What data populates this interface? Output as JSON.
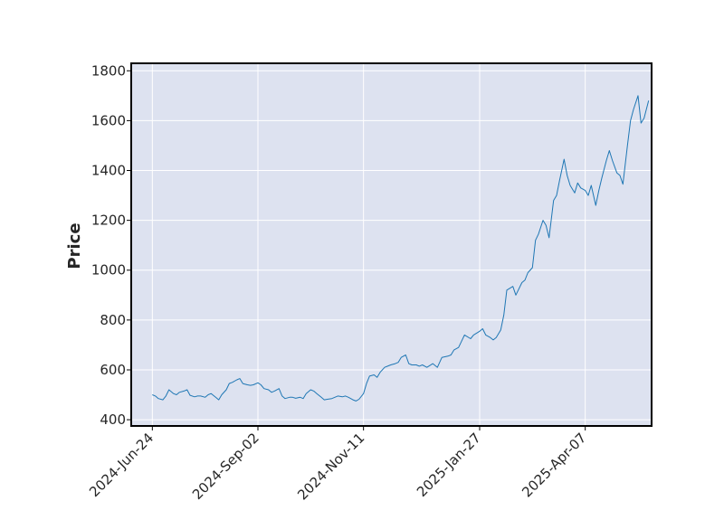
{
  "chart_data": {
    "type": "line",
    "title": "",
    "xlabel": "",
    "ylabel": "Price",
    "ylim": [
      375,
      1830
    ],
    "xlim": [
      "2024-06-10",
      "2025-05-21"
    ],
    "y_ticks": [
      "400",
      "600",
      "800",
      "1000",
      "1200",
      "1400",
      "1600",
      "1800"
    ],
    "y_tick_values": [
      400,
      600,
      800,
      1000,
      1200,
      1400,
      1600,
      1800
    ],
    "x_ticks": [
      "2024-Jun-24",
      "2024-Sep-02",
      "2024-Nov-11",
      "2025-Jan-27",
      "2025-Apr-07"
    ],
    "x_tick_dates": [
      "2024-06-24",
      "2024-09-02",
      "2024-11-11",
      "2025-01-27",
      "2025-04-07"
    ],
    "grid": true,
    "background_color": "#dde2f0",
    "line_color": "#1f77b4",
    "series": [
      {
        "name": "",
        "x": [
          "2024-06-24",
          "2024-06-26",
          "2024-06-28",
          "2024-07-01",
          "2024-07-03",
          "2024-07-05",
          "2024-07-08",
          "2024-07-10",
          "2024-07-12",
          "2024-07-15",
          "2024-07-17",
          "2024-07-19",
          "2024-07-22",
          "2024-07-24",
          "2024-07-26",
          "2024-07-29",
          "2024-07-31",
          "2024-08-02",
          "2024-08-05",
          "2024-08-07",
          "2024-08-09",
          "2024-08-12",
          "2024-08-14",
          "2024-08-16",
          "2024-08-19",
          "2024-08-21",
          "2024-08-23",
          "2024-08-26",
          "2024-08-28",
          "2024-08-30",
          "2024-09-02",
          "2024-09-04",
          "2024-09-06",
          "2024-09-09",
          "2024-09-11",
          "2024-09-13",
          "2024-09-16",
          "2024-09-18",
          "2024-09-20",
          "2024-09-23",
          "2024-09-25",
          "2024-09-27",
          "2024-09-30",
          "2024-10-02",
          "2024-10-04",
          "2024-10-07",
          "2024-10-09",
          "2024-10-11",
          "2024-10-14",
          "2024-10-16",
          "2024-10-18",
          "2024-10-21",
          "2024-10-23",
          "2024-10-25",
          "2024-10-28",
          "2024-10-30",
          "2024-11-01",
          "2024-11-04",
          "2024-11-06",
          "2024-11-08",
          "2024-11-11",
          "2024-11-13",
          "2024-11-15",
          "2024-11-18",
          "2024-11-20",
          "2024-11-22",
          "2024-11-25",
          "2024-11-27",
          "2024-11-29",
          "2024-12-02",
          "2024-12-04",
          "2024-12-06",
          "2024-12-09",
          "2024-12-11",
          "2024-12-13",
          "2024-12-16",
          "2024-12-18",
          "2024-12-20",
          "2024-12-23",
          "2024-12-27",
          "2024-12-30",
          "2025-01-02",
          "2025-01-06",
          "2025-01-08",
          "2025-01-10",
          "2025-01-13",
          "2025-01-15",
          "2025-01-17",
          "2025-01-21",
          "2025-01-23",
          "2025-01-27",
          "2025-01-29",
          "2025-01-31",
          "2025-02-03",
          "2025-02-05",
          "2025-02-07",
          "2025-02-10",
          "2025-02-12",
          "2025-02-14",
          "2025-02-18",
          "2025-02-20",
          "2025-02-24",
          "2025-02-26",
          "2025-02-28",
          "2025-03-03",
          "2025-03-05",
          "2025-03-07",
          "2025-03-10",
          "2025-03-12",
          "2025-03-14",
          "2025-03-17",
          "2025-03-19",
          "2025-03-21",
          "2025-03-24",
          "2025-03-26",
          "2025-03-28",
          "2025-03-31",
          "2025-04-02",
          "2025-04-04",
          "2025-04-07",
          "2025-04-09",
          "2025-04-11",
          "2025-04-14",
          "2025-04-16",
          "2025-04-18",
          "2025-04-21",
          "2025-04-23",
          "2025-04-25",
          "2025-04-28",
          "2025-04-30",
          "2025-05-02",
          "2025-05-05",
          "2025-05-07",
          "2025-05-09",
          "2025-05-12",
          "2025-05-14",
          "2025-05-16",
          "2025-05-19"
        ],
        "y": [
          500,
          495,
          485,
          480,
          495,
          520,
          505,
          500,
          510,
          515,
          520,
          498,
          492,
          495,
          495,
          490,
          500,
          505,
          490,
          480,
          500,
          520,
          545,
          550,
          560,
          565,
          545,
          540,
          538,
          540,
          548,
          540,
          525,
          520,
          510,
          515,
          525,
          495,
          485,
          490,
          490,
          486,
          490,
          485,
          505,
          520,
          515,
          505,
          490,
          480,
          482,
          485,
          490,
          495,
          492,
          495,
          490,
          480,
          475,
          482,
          505,
          545,
          575,
          580,
          570,
          590,
          610,
          615,
          620,
          625,
          630,
          650,
          660,
          625,
          620,
          620,
          615,
          620,
          610,
          625,
          610,
          650,
          655,
          660,
          680,
          690,
          715,
          740,
          725,
          740,
          755,
          765,
          740,
          730,
          720,
          730,
          760,
          820,
          920,
          935,
          900,
          950,
          960,
          990,
          1010,
          1120,
          1145,
          1200,
          1180,
          1130,
          1280,
          1300,
          1360,
          1445,
          1380,
          1340,
          1310,
          1350,
          1330,
          1320,
          1300,
          1340,
          1260,
          1320,
          1370,
          1440,
          1480,
          1440,
          1390,
          1380,
          1345,
          1500,
          1600,
          1645,
          1700,
          1590,
          1610,
          1680
        ]
      }
    ]
  }
}
